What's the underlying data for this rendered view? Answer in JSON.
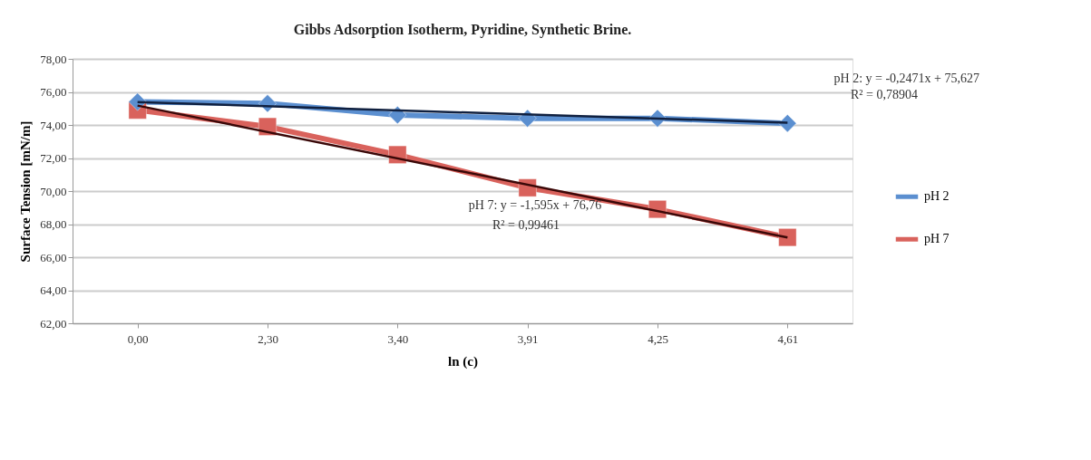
{
  "chart_data": {
    "type": "line",
    "title": "Gibbs Adsorption Isotherm, Pyridine, Synthetic Brine.",
    "xlabel": "ln (c)",
    "ylabel": "Surface Tension [mN/m]",
    "categories": [
      "0,00",
      "2,30",
      "3,40",
      "3,91",
      "4,25",
      "4,61"
    ],
    "series": [
      {
        "name": "pH 2",
        "color": "#5b8fd0",
        "marker": "diamond",
        "values": [
          75.4,
          75.3,
          74.6,
          74.4,
          74.4,
          74.1
        ]
      },
      {
        "name": "pH 7",
        "color": "#d9625c",
        "marker": "square",
        "values": [
          74.9,
          73.9,
          72.2,
          70.2,
          68.9,
          67.2
        ]
      },
      {
        "type": "line",
        "color": "#10203f",
        "marker": "none",
        "x": [
          "0,00",
          "4,61"
        ],
        "values": [
          75.38,
          74.14
        ]
      },
      {
        "type": "line",
        "color": "#3a0808",
        "marker": "none",
        "x": [
          "0,00",
          "4,61"
        ],
        "values": [
          75.17,
          67.19
        ]
      }
    ],
    "ylim": [
      62,
      78
    ],
    "yticks": [
      {
        "value": 62,
        "label": "62,00"
      },
      {
        "value": 64,
        "label": "64,00"
      },
      {
        "value": 66,
        "label": "66,00"
      },
      {
        "value": 68,
        "label": "68,00"
      },
      {
        "value": 70,
        "label": "70,00"
      },
      {
        "value": 72,
        "label": "72,00"
      },
      {
        "value": 74,
        "label": "74,00"
      },
      {
        "value": 76,
        "label": "76,00"
      },
      {
        "value": 78,
        "label": "78,00"
      }
    ],
    "grid": "y",
    "legend": "right",
    "annotations": [
      "pH 2: y = -0,2471x + 75,627",
      "R² = 0,78904",
      "pH 7: y = -1,595x + 76,76",
      "R² = 0,99461"
    ]
  }
}
